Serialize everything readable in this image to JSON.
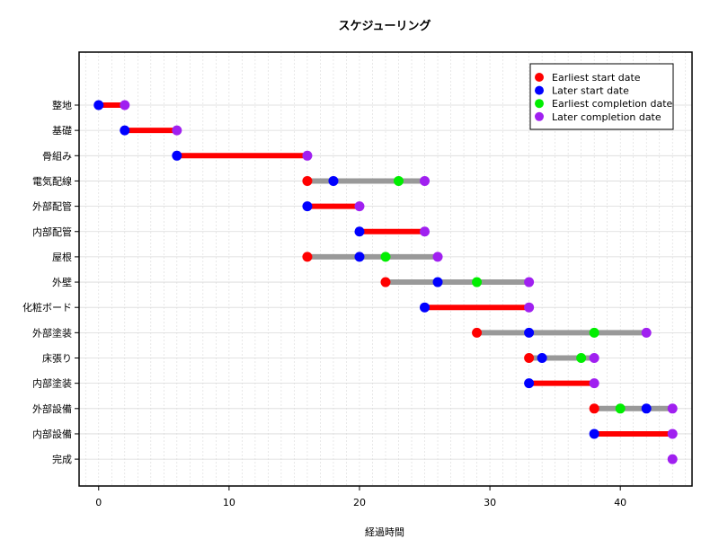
{
  "chart_data": {
    "type": "scatter",
    "title": "スケジューリング",
    "xlabel": "経過時間",
    "ylabel": "",
    "xlim": [
      -1.5,
      45.5
    ],
    "xticks": [
      0,
      10,
      20,
      30,
      40
    ],
    "xtick_labels": [
      "0",
      "10",
      "20",
      "30",
      "40"
    ],
    "grid": true,
    "legend_position": "top-right",
    "legend": [
      {
        "name": "Earliest start date",
        "color": "#ff0000"
      },
      {
        "name": "Later start date",
        "color": "#0000ff"
      },
      {
        "name": "Earliest completion date",
        "color": "#00ee00"
      },
      {
        "name": "Later completion date",
        "color": "#a020f0"
      }
    ],
    "segment_colors": {
      "critical": "#ff0000",
      "slack": "#999999"
    },
    "tasks": [
      {
        "name": "整地",
        "earliest_start": 0,
        "later_start": 0,
        "earliest_completion": 2,
        "later_completion": 2,
        "critical": true
      },
      {
        "name": "基礎",
        "earliest_start": 2,
        "later_start": 2,
        "earliest_completion": 6,
        "later_completion": 6,
        "critical": true
      },
      {
        "name": "骨組み",
        "earliest_start": 6,
        "later_start": 6,
        "earliest_completion": 16,
        "later_completion": 16,
        "critical": true
      },
      {
        "name": "電気配線",
        "earliest_start": 16,
        "later_start": 18,
        "earliest_completion": 23,
        "later_completion": 25,
        "critical": false
      },
      {
        "name": "外部配管",
        "earliest_start": 16,
        "later_start": 16,
        "earliest_completion": 20,
        "later_completion": 20,
        "critical": true
      },
      {
        "name": "内部配管",
        "earliest_start": 20,
        "later_start": 20,
        "earliest_completion": 25,
        "later_completion": 25,
        "critical": true
      },
      {
        "name": "屋根",
        "earliest_start": 16,
        "later_start": 20,
        "earliest_completion": 22,
        "later_completion": 26,
        "critical": false
      },
      {
        "name": "外壁",
        "earliest_start": 22,
        "later_start": 26,
        "earliest_completion": 29,
        "later_completion": 33,
        "critical": false
      },
      {
        "name": "化粧ボード",
        "earliest_start": 25,
        "later_start": 25,
        "earliest_completion": 33,
        "later_completion": 33,
        "critical": true
      },
      {
        "name": "外部塗装",
        "earliest_start": 29,
        "later_start": 33,
        "earliest_completion": 38,
        "later_completion": 42,
        "critical": false
      },
      {
        "name": "床張り",
        "earliest_start": 33,
        "later_start": 34,
        "earliest_completion": 37,
        "later_completion": 38,
        "critical": false
      },
      {
        "name": "内部塗装",
        "earliest_start": 33,
        "later_start": 33,
        "earliest_completion": 38,
        "later_completion": 38,
        "critical": true
      },
      {
        "name": "外部設備",
        "earliest_start": 38,
        "later_start": 42,
        "earliest_completion": 40,
        "later_completion": 44,
        "critical": false
      },
      {
        "name": "内部設備",
        "earliest_start": 38,
        "later_start": 38,
        "earliest_completion": 44,
        "later_completion": 44,
        "critical": true
      },
      {
        "name": "完成",
        "earliest_start": 44,
        "later_start": 44,
        "earliest_completion": 44,
        "later_completion": 44,
        "critical": true,
        "milestone": true
      }
    ]
  }
}
